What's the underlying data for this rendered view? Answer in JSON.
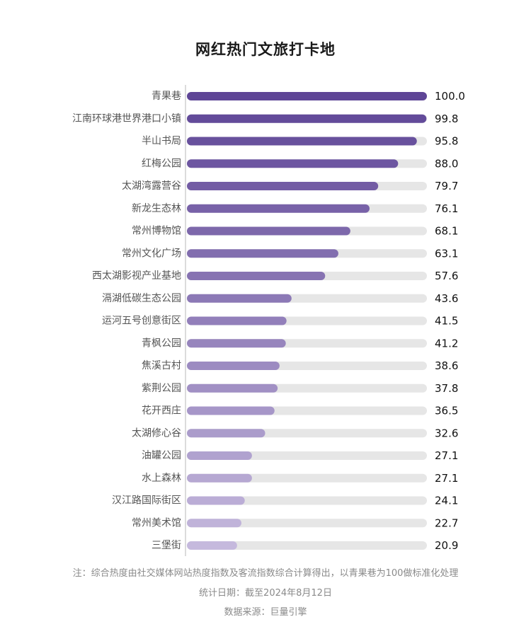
{
  "chart_data": {
    "type": "bar",
    "orientation": "horizontal",
    "title": "网红热门文旅打卡地",
    "categories": [
      "青果巷",
      "江南环球港世界港口小镇",
      "半山书局",
      "红梅公园",
      "太湖湾露营谷",
      "新龙生态林",
      "常州博物馆",
      "常州文化广场",
      "西太湖影视产业基地",
      "滆湖低碳生态公园",
      "运河五号创意街区",
      "青枫公园",
      "焦溪古村",
      "紫荆公园",
      "花开西庄",
      "太湖修心谷",
      "油罐公园",
      "水上森林",
      "汉江路国际街区",
      "常州美术馆",
      "三堡街"
    ],
    "values": [
      100.0,
      99.8,
      95.8,
      88.0,
      79.7,
      76.1,
      68.1,
      63.1,
      57.6,
      43.6,
      41.5,
      41.2,
      38.6,
      37.8,
      36.5,
      32.6,
      27.1,
      27.1,
      24.1,
      22.7,
      20.9
    ],
    "value_labels": [
      "100.0",
      "99.8",
      "95.8",
      "88.0",
      "79.7",
      "76.1",
      "68.1",
      "63.1",
      "57.6",
      "43.6",
      "41.5",
      "41.2",
      "38.6",
      "37.8",
      "36.5",
      "32.6",
      "27.1",
      "27.1",
      "24.1",
      "22.7",
      "20.9"
    ],
    "xlim": [
      0,
      100
    ],
    "grid": false,
    "legend": "none",
    "colors": {
      "bar_start": "#5e4596",
      "bar_end": "#c5b9dd",
      "track": "#e6e6e6",
      "axis": "#cfcfcf",
      "label": "#555555",
      "value": "#111111"
    }
  },
  "footer": {
    "note": "注：综合热度由社交媒体网站热度指数及客流指数综合计算得出，以青果巷为100做标准化处理",
    "date": "统计日期：截至2024年8月12日",
    "source": "数据来源：巨量引擎"
  }
}
